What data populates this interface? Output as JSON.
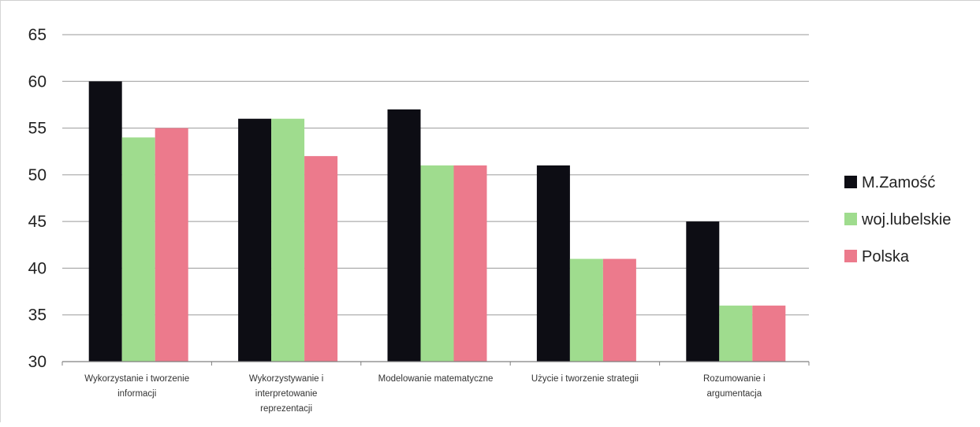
{
  "chart_data": {
    "type": "bar",
    "title": "",
    "xlabel": "",
    "ylabel": "",
    "ylim": [
      30,
      65
    ],
    "yticks": [
      30,
      35,
      40,
      45,
      50,
      55,
      60,
      65
    ],
    "grid": true,
    "legend_position": "right",
    "categories": [
      [
        "Wykorzystanie i tworzenie",
        "informacji"
      ],
      [
        "Wykorzystywanie i",
        "interpretowanie",
        "reprezentacji"
      ],
      [
        "Modelowanie matematyczne"
      ],
      [
        "Użycie i tworzenie strategii"
      ],
      [
        "Rozumowanie i",
        "argumentacja"
      ]
    ],
    "series": [
      {
        "name": "M.Zamość",
        "color": "#0d0d14",
        "values": [
          60,
          56,
          57,
          51,
          45
        ]
      },
      {
        "name": "woj.lubelskie",
        "color": "#9fdc8e",
        "values": [
          54,
          56,
          51,
          41,
          36
        ]
      },
      {
        "name": "Polska",
        "color": "#ec7a8c",
        "values": [
          55,
          52,
          51,
          41,
          36
        ]
      }
    ]
  }
}
